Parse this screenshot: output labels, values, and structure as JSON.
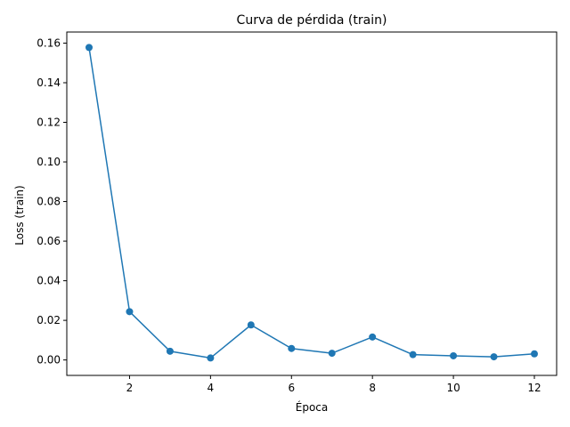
{
  "chart_data": {
    "type": "line",
    "title": "Curva de pérdida (train)",
    "xlabel": "Época",
    "ylabel": "Loss (train)",
    "x": [
      1,
      2,
      3,
      4,
      5,
      6,
      7,
      8,
      9,
      10,
      11,
      12
    ],
    "series": [
      {
        "values": [
          0.1578,
          0.0244,
          0.0044,
          0.001,
          0.0177,
          0.0058,
          0.0034,
          0.0116,
          0.0027,
          0.0021,
          0.0016,
          0.0031
        ],
        "color": "#1f77b4",
        "marker": "circle"
      }
    ],
    "xlim": [
      0.45,
      12.55
    ],
    "ylim": [
      -0.0078,
      0.1656
    ],
    "xticks": [
      2,
      4,
      6,
      8,
      10,
      12
    ],
    "xtick_labels": [
      "2",
      "4",
      "6",
      "8",
      "10",
      "12"
    ],
    "yticks": [
      0.0,
      0.02,
      0.04,
      0.06,
      0.08,
      0.1,
      0.12,
      0.14,
      0.16
    ],
    "ytick_labels": [
      "0.00",
      "0.02",
      "0.04",
      "0.06",
      "0.08",
      "0.10",
      "0.12",
      "0.14",
      "0.16"
    ],
    "grid": false,
    "legend": false
  }
}
